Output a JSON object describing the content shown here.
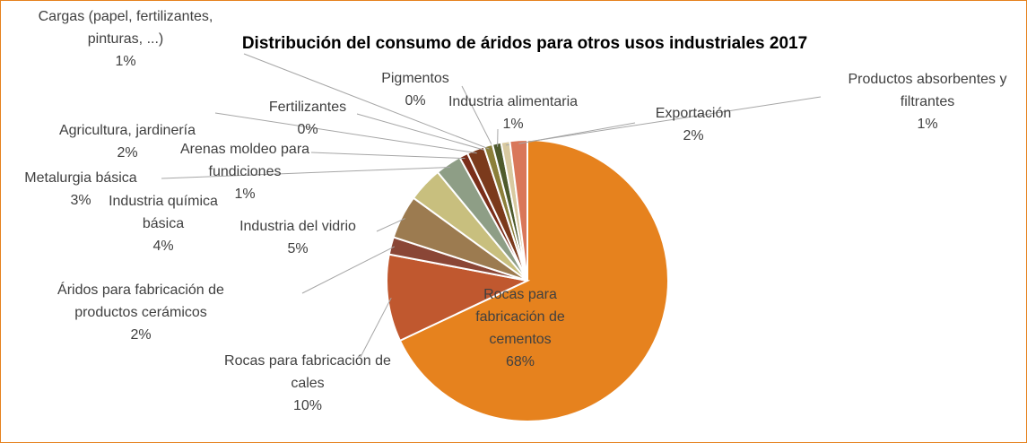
{
  "chart_data": {
    "type": "pie",
    "title": "Distribución del consumo de áridos para otros usos industriales 2017",
    "categories": [
      "Rocas para fabricación de cementos",
      "Rocas para fabricación de cales",
      "Áridos para fabricación de productos cerámicos",
      "Industria del vidrio",
      "Industria química básica",
      "Metalurgia básica",
      "Arenas moldeo para fundiciones",
      "Agricultura, jardinería",
      "Fertilizantes",
      "Cargas (papel, fertilizantes, pinturas, ...)",
      "Pigmentos",
      "Industria alimentaria",
      "Productos absorbentes y filtrantes",
      "Exportación"
    ],
    "values": [
      68,
      10,
      2,
      5,
      4,
      3,
      1,
      2,
      0,
      1,
      0,
      1,
      1,
      2
    ],
    "value_labels": [
      "68%",
      "10%",
      "2%",
      "5%",
      "4%",
      "3%",
      "1%",
      "2%",
      "0%",
      "1%",
      "0%",
      "1%",
      "1%",
      "2%"
    ],
    "colors": [
      "#e6821e",
      "#c0582f",
      "#8a4636",
      "#9c7b50",
      "#c8bf7e",
      "#8e9e86",
      "#7a2e1a",
      "#7b3a1c",
      "#a65a2a",
      "#8b7f3a",
      "#5e5a2a",
      "#4e5a2c",
      "#d8c9a0",
      "#d9775a"
    ]
  }
}
